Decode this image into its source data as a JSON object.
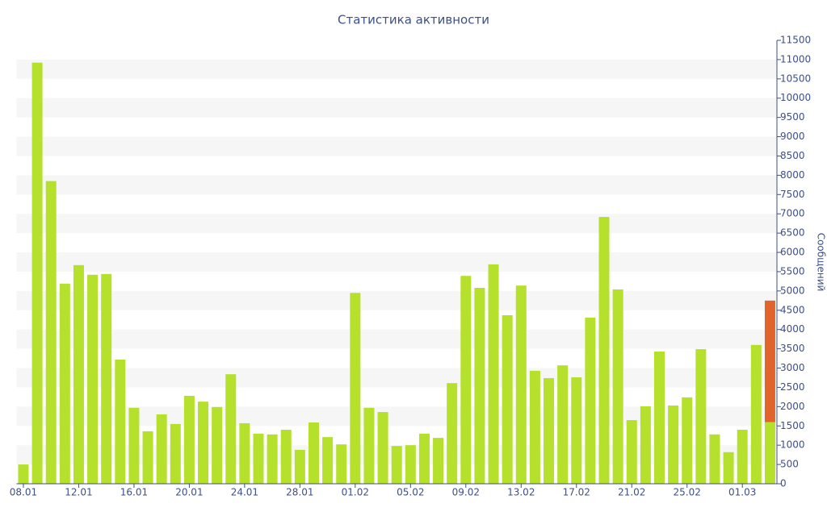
{
  "chart_data": {
    "type": "bar",
    "title": "Статистика активности",
    "y_label": "Сообщений",
    "categories": [
      "08.01",
      null,
      null,
      null,
      "12.01",
      null,
      null,
      null,
      "16.01",
      null,
      null,
      null,
      "20.01",
      null,
      null,
      null,
      "24.01",
      null,
      null,
      null,
      "28.01",
      null,
      null,
      null,
      "01.02",
      null,
      null,
      null,
      "05.02",
      null,
      null,
      null,
      "09.02",
      null,
      null,
      null,
      "13.02",
      null,
      null,
      null,
      "17.02",
      null,
      null,
      null,
      "21.02",
      null,
      null,
      null,
      "25.02",
      null,
      null,
      null,
      "01.03",
      null,
      null
    ],
    "series": [
      {
        "color": "#b5e02c",
        "values": [
          500,
          10920,
          7850,
          5190,
          5670,
          5420,
          5440,
          3220,
          1970,
          1360,
          1800,
          1550,
          2280,
          2130,
          1990,
          2840,
          1570,
          1300,
          1280,
          1400,
          880,
          1590,
          1210,
          1020,
          4950,
          1970,
          1860,
          980,
          1000,
          1300,
          1190,
          2610,
          5390,
          5080,
          5690,
          4370,
          5140,
          2930,
          2740,
          3070,
          2760,
          4310,
          6920,
          5040,
          1650,
          2010,
          3430,
          2030,
          2240,
          3490,
          1280,
          820,
          1400,
          3600,
          1600
        ]
      },
      {
        "color": "#e0642c",
        "values": [
          null,
          null,
          null,
          null,
          null,
          null,
          null,
          null,
          null,
          null,
          null,
          null,
          null,
          null,
          null,
          null,
          null,
          null,
          null,
          null,
          null,
          null,
          null,
          null,
          null,
          null,
          null,
          null,
          null,
          null,
          null,
          null,
          null,
          null,
          null,
          null,
          null,
          null,
          null,
          null,
          null,
          null,
          null,
          null,
          null,
          null,
          null,
          null,
          null,
          null,
          null,
          null,
          null,
          null,
          3150
        ]
      }
    ],
    "stacked": true,
    "ylim": [
      0,
      11500
    ],
    "yticks": [
      0,
      500,
      1000,
      1500,
      2000,
      2500,
      3000,
      3500,
      4000,
      4500,
      5000,
      5500,
      6000,
      6500,
      7000,
      7500,
      8000,
      8500,
      9000,
      9500,
      10000,
      10500,
      11000,
      11500
    ],
    "grid_bands": true
  }
}
